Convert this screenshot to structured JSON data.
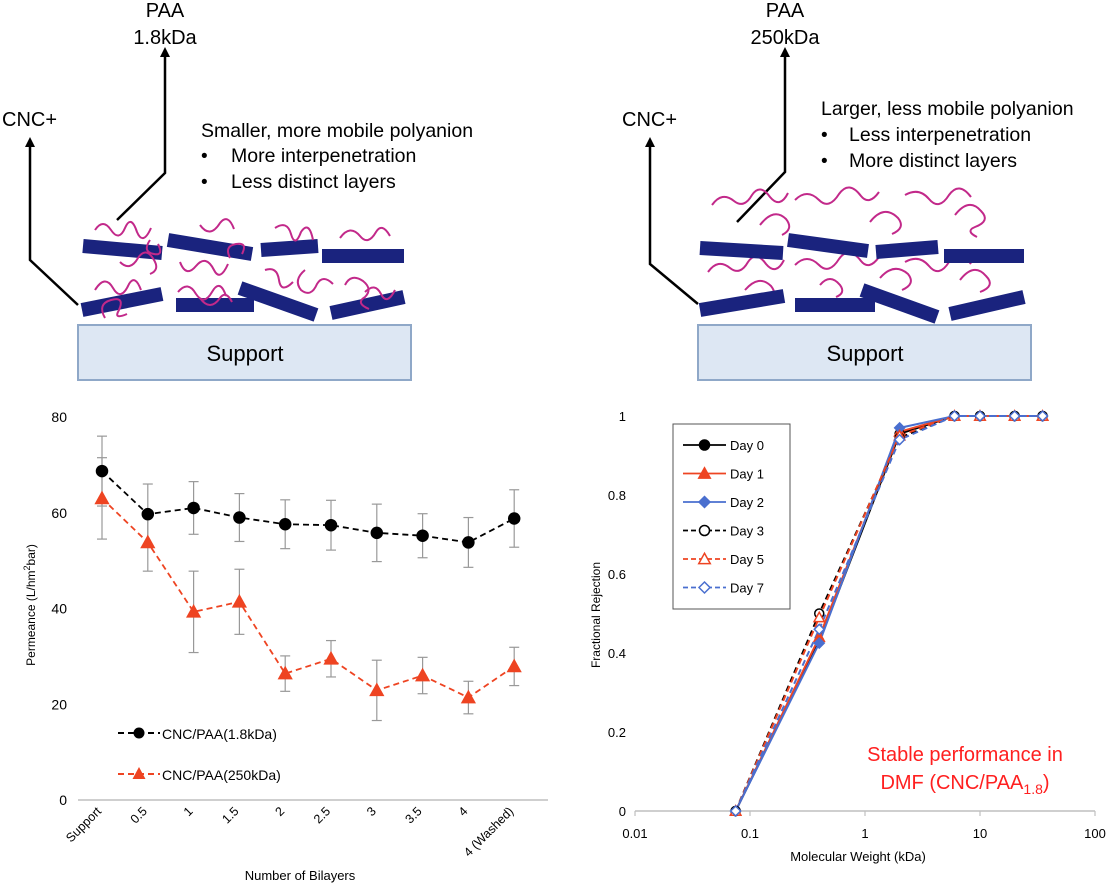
{
  "schematics": {
    "left": {
      "top_label_line1": "PAA",
      "top_label_line2": "1.8kDa",
      "side_label": "CNC+",
      "heading": "Smaller, more mobile polyanion",
      "bullets": [
        "More interpenetration",
        "Less distinct layers"
      ],
      "support_label": "Support"
    },
    "right": {
      "top_label_line1": "PAA",
      "top_label_line2": "250kDa",
      "side_label": "CNC+",
      "heading": "Larger, less mobile polyanion",
      "bullets": [
        "Less interpenetration",
        "More distinct layers"
      ],
      "support_label": "Support"
    },
    "colors": {
      "cnc_rod": "#1a237e",
      "paa_chain": "#c2298a",
      "support_fill": "#dde7f3",
      "support_border": "#8fa8c8"
    }
  },
  "chart_data": [
    {
      "type": "line",
      "xlabel": "Number of Bilayers",
      "ylabel_main": "Permeance (L/hm",
      "ylabel_sup": "2",
      "ylabel_tail": "bar)",
      "categories": [
        "Support",
        "0.5",
        "1",
        "1.5",
        "2",
        "2.5",
        "3",
        "3.5",
        "4",
        "4 (Washed)"
      ],
      "ylim": [
        0,
        80
      ],
      "yticks": [
        0,
        20,
        40,
        60,
        80
      ],
      "legend_position": "bottom-left",
      "series": [
        {
          "name": "CNC/PAA(1.8kDa)",
          "color": "#000000",
          "marker": "circle",
          "values": [
            68.7,
            59.7,
            61.0,
            59.0,
            57.6,
            57.4,
            55.8,
            55.2,
            53.8,
            58.8
          ],
          "errors": [
            7.3,
            6.3,
            5.5,
            5.0,
            5.1,
            5.2,
            6.0,
            4.6,
            5.2,
            6.0
          ]
        },
        {
          "name": "CNC/PAA(250kDa)",
          "color": "#ee4422",
          "marker": "triangle",
          "values": [
            63.0,
            53.8,
            39.3,
            41.4,
            26.4,
            29.5,
            22.9,
            26.0,
            21.4,
            27.9
          ],
          "errors": [
            8.5,
            6.0,
            8.5,
            6.8,
            3.7,
            3.8,
            6.3,
            3.8,
            3.4,
            4.0
          ]
        }
      ]
    },
    {
      "type": "line",
      "xlabel": "Molecular Weight (kDa)",
      "ylabel": "Fractional Rejection",
      "xscale": "log",
      "xlim": [
        0.01,
        100
      ],
      "xtick_values": [
        0.01,
        0.1,
        1,
        10,
        100
      ],
      "xtick_labels": [
        "0.01",
        "0.1",
        "1",
        "10",
        "100"
      ],
      "ylim": [
        0,
        1
      ],
      "yticks": [
        0,
        0.2,
        0.4,
        0.6,
        0.8,
        1
      ],
      "ytick_labels": [
        "0",
        "0.2",
        "0.4",
        "0.6",
        "0.8",
        "1"
      ],
      "x": [
        0.075,
        0.4,
        2,
        6,
        10,
        20,
        35
      ],
      "legend_position": "top-left",
      "series": [
        {
          "name": "Day 0",
          "color": "#000000",
          "marker": "circle",
          "filled": true,
          "dashed": false,
          "values": [
            0,
            0.43,
            0.955,
            1,
            1,
            1,
            1
          ]
        },
        {
          "name": "Day 1",
          "color": "#ee4422",
          "marker": "triangle",
          "filled": true,
          "dashed": false,
          "values": [
            0,
            0.44,
            0.96,
            1,
            1,
            1,
            1
          ]
        },
        {
          "name": "Day 2",
          "color": "#4a6fcf",
          "marker": "diamond",
          "filled": true,
          "dashed": false,
          "values": [
            0,
            0.425,
            0.97,
            1,
            1,
            1,
            1
          ]
        },
        {
          "name": "Day 3",
          "color": "#000000",
          "marker": "circle",
          "filled": false,
          "dashed": true,
          "values": [
            0,
            0.5,
            0.945,
            1,
            1,
            1,
            1
          ]
        },
        {
          "name": "Day 5",
          "color": "#ee4422",
          "marker": "triangle",
          "filled": false,
          "dashed": true,
          "values": [
            0,
            0.49,
            0.95,
            1,
            1,
            1,
            1
          ]
        },
        {
          "name": "Day 7",
          "color": "#4a6fcf",
          "marker": "diamond",
          "filled": false,
          "dashed": true,
          "values": [
            0,
            0.46,
            0.94,
            1,
            1,
            1,
            1
          ]
        }
      ],
      "annotation_line1": "Stable performance in",
      "annotation_line2_prefix": "DMF (CNC/PAA",
      "annotation_line2_sub": "1.8",
      "annotation_line2_suffix": ")",
      "annotation_color": "#ff2020"
    }
  ]
}
